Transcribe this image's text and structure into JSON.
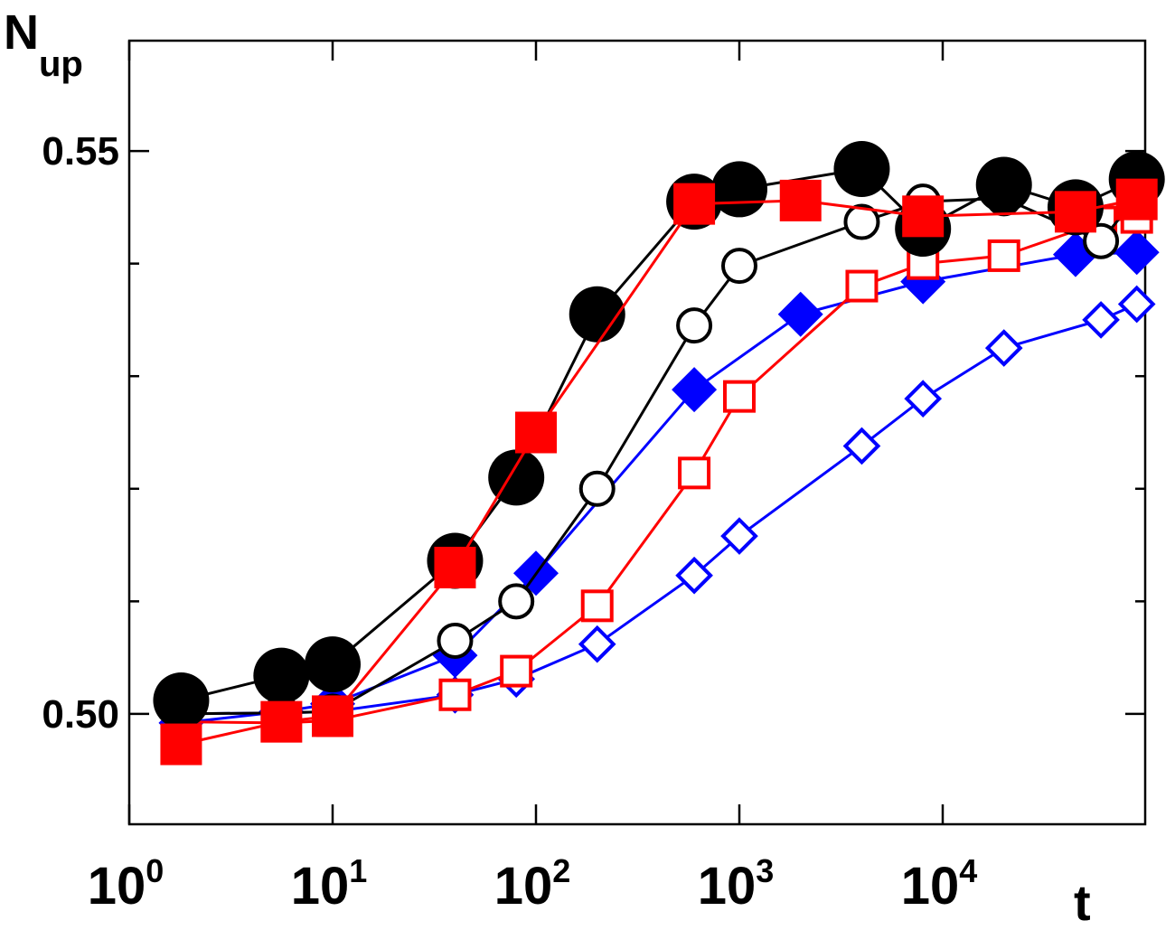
{
  "chart_data": {
    "type": "line",
    "xscale": "log",
    "xlim": [
      1,
      90000
    ],
    "ylim": [
      0.4902,
      0.5598
    ],
    "ylabel": {
      "main": "N",
      "sub": "up"
    },
    "xlabel": "t",
    "x_ticks": [
      {
        "value": 1,
        "base": "10",
        "exp": "0"
      },
      {
        "value": 10,
        "base": "10",
        "exp": "1"
      },
      {
        "value": 100,
        "base": "10",
        "exp": "2"
      },
      {
        "value": 1000,
        "base": "10",
        "exp": "3"
      },
      {
        "value": 10000,
        "base": "10",
        "exp": "4"
      }
    ],
    "y_ticks": [
      {
        "value": 0.5,
        "label": "0.50"
      },
      {
        "value": 0.51,
        "label": ""
      },
      {
        "value": 0.52,
        "label": ""
      },
      {
        "value": 0.53,
        "label": ""
      },
      {
        "value": 0.54,
        "label": ""
      },
      {
        "value": 0.55,
        "label": "0.55"
      }
    ],
    "grid": false,
    "series": [
      {
        "color": "#0000ff",
        "marker": "diamond",
        "filled": true,
        "x": [
          1.8,
          5.6,
          10,
          40,
          100,
          600,
          2000,
          8000,
          45000,
          90000
        ],
        "y": [
          0.4992,
          0.5002,
          0.5009,
          0.5052,
          0.5125,
          0.5288,
          0.5355,
          0.5384,
          0.5408,
          0.541
        ]
      },
      {
        "color": "#0000ff",
        "marker": "diamond",
        "filled": false,
        "x": [
          1.8,
          5.6,
          10,
          40,
          80,
          200,
          600,
          1000,
          4000,
          8000,
          20000,
          60000,
          90000
        ],
        "y": [
          0.5,
          0.5001,
          0.5002,
          0.5017,
          0.5031,
          0.5062,
          0.5123,
          0.5158,
          0.5238,
          0.528,
          0.5325,
          0.535,
          0.5364
        ]
      },
      {
        "color": "#ff0000",
        "marker": "square",
        "filled": false,
        "x": [
          1.8,
          5.6,
          10,
          40,
          80,
          200,
          600,
          1000,
          4000,
          8000,
          20000,
          60000,
          90000
        ],
        "y": [
          0.4993,
          0.4992,
          0.4994,
          0.5017,
          0.5038,
          0.5096,
          0.5214,
          0.5282,
          0.538,
          0.54,
          0.5407,
          0.5437,
          0.5441
        ]
      },
      {
        "color": "#000000",
        "marker": "circle",
        "filled": false,
        "x": [
          1.8,
          5.6,
          10,
          40,
          80,
          200,
          600,
          1000,
          4000,
          8000,
          20000,
          60000,
          90000
        ],
        "y": [
          0.5,
          0.5001,
          0.5002,
          0.5065,
          0.51,
          0.52,
          0.5345,
          0.5398,
          0.5437,
          0.5455,
          0.5458,
          0.542,
          0.5459
        ]
      },
      {
        "color": "#000000",
        "marker": "circle",
        "filled": true,
        "x": [
          1.8,
          5.6,
          10,
          40,
          80,
          200,
          600,
          1000,
          4000,
          8000,
          20000,
          45000,
          90000
        ],
        "y": [
          0.5012,
          0.5034,
          0.5044,
          0.5136,
          0.521,
          0.5355,
          0.5455,
          0.5466,
          0.5484,
          0.5431,
          0.547,
          0.545,
          0.5475
        ]
      },
      {
        "color": "#ff0000",
        "marker": "square",
        "filled": true,
        "x": [
          1.8,
          5.6,
          10,
          40,
          100,
          600,
          2000,
          8000,
          45000,
          90000
        ],
        "y": [
          0.4973,
          0.4993,
          0.4998,
          0.513,
          0.525,
          0.5453,
          0.5456,
          0.5442,
          0.5446,
          0.5457
        ]
      }
    ]
  }
}
